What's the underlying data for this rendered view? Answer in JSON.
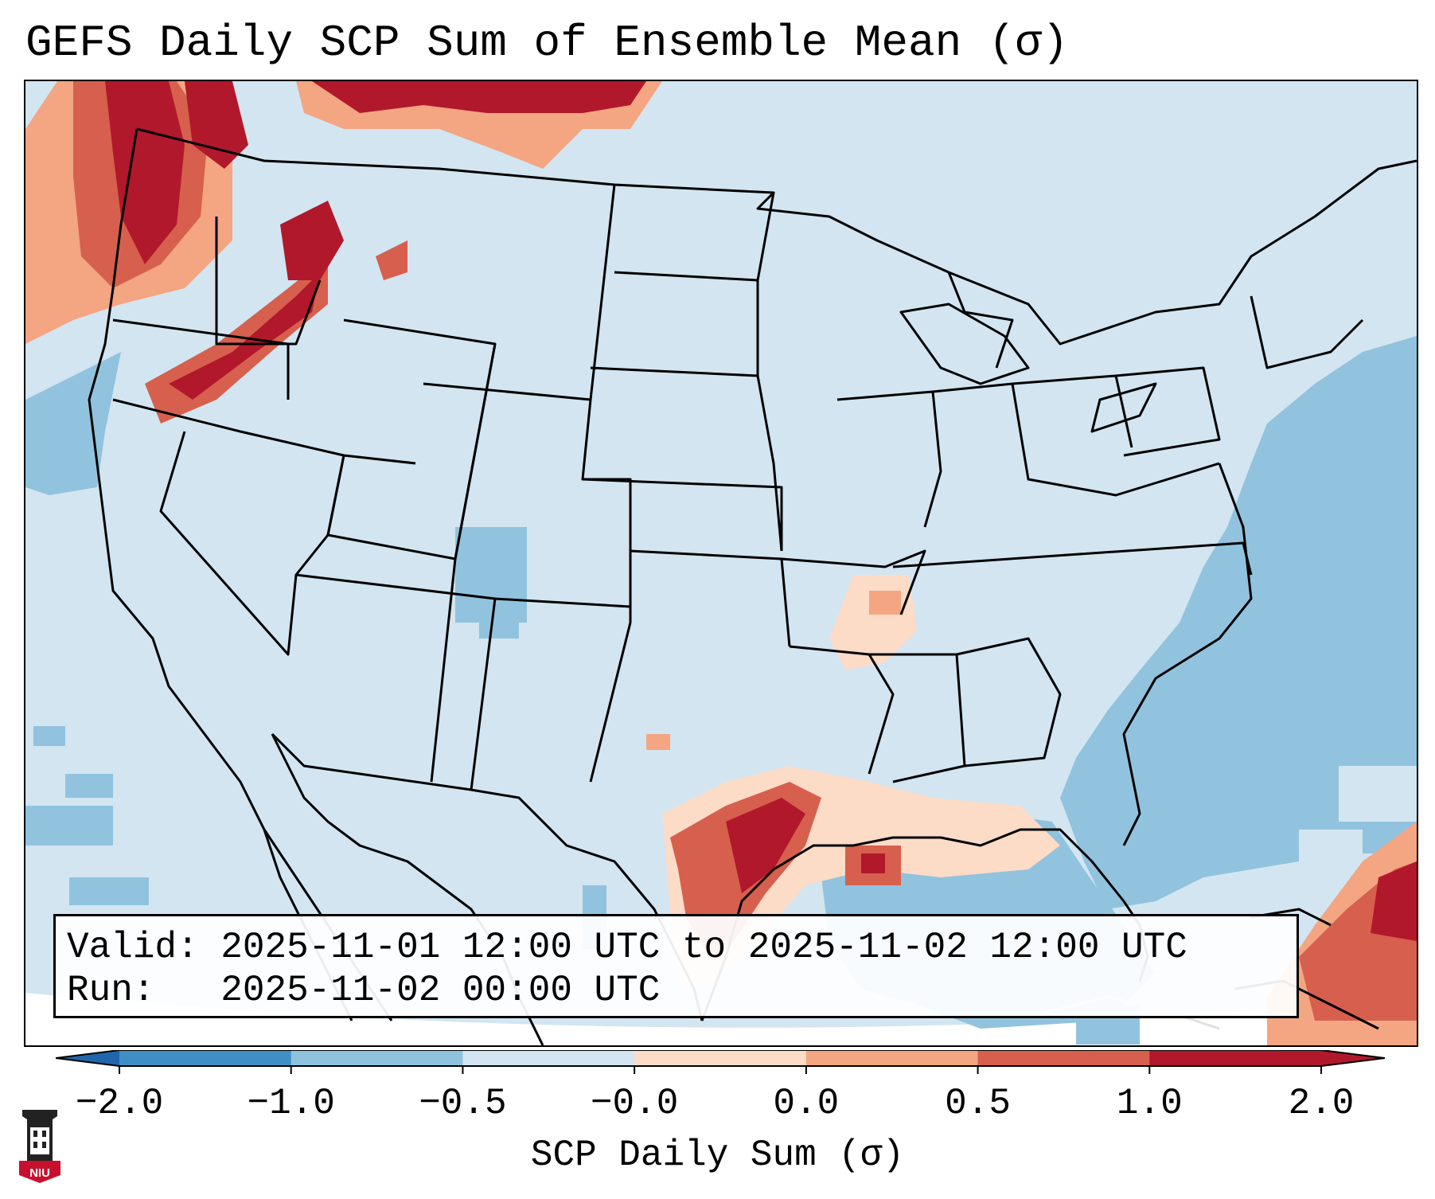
{
  "title": "GEFS Daily SCP Sum of Ensemble Mean (σ)",
  "info": {
    "valid_label": "Valid:",
    "valid_value": "2025-11-01 12:00 UTC to 2025-11-02 12:00 UTC",
    "run_label": "Run:",
    "run_value": "2025-11-02 00:00 UTC"
  },
  "colorbar": {
    "label": "SCP Daily Sum (σ)",
    "ticks": [
      "−2.0",
      "−1.0",
      "−0.5",
      "−0.0",
      "0.0",
      "0.5",
      "1.0",
      "2.0"
    ],
    "colors": [
      "#3f8fc5",
      "#8fc2dd",
      "#d2e5f1",
      "#fcdbc7",
      "#f4a582",
      "#d6604d",
      "#b2182b"
    ]
  },
  "map": {
    "background_color": "#d2e5f1",
    "ocean_color": "#91c3de",
    "region": "Continental United States"
  },
  "logo": {
    "text": "NIU",
    "colors": {
      "shield": "#c8102e",
      "tower": "#222222"
    }
  }
}
